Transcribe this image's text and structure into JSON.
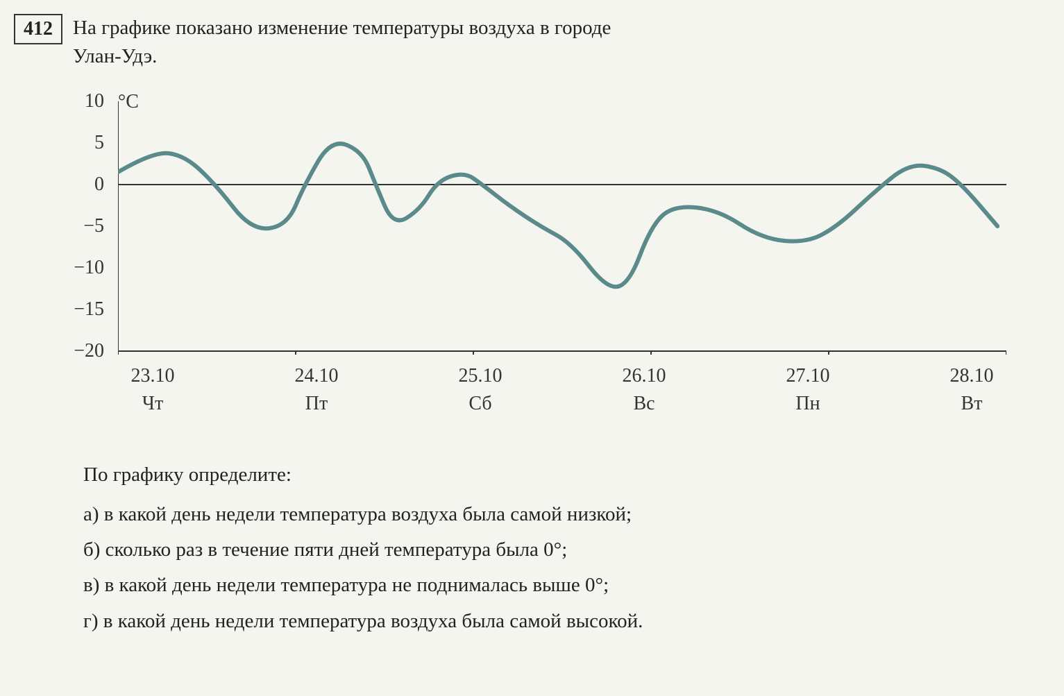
{
  "exercise": {
    "number": "412",
    "intro_line1": "На графике показано изменение температуры воздуха в городе",
    "intro_line2": "Улан-Удэ."
  },
  "chart": {
    "type": "line",
    "y_unit": "°C",
    "y_labels": [
      "10",
      "5",
      "0",
      "−5",
      "−10",
      "−15",
      "−20"
    ],
    "y_values": [
      10,
      5,
      0,
      -5,
      -10,
      -15,
      -20
    ],
    "ylim": [
      -20,
      10
    ],
    "x_dates": [
      "23.10",
      "24.10",
      "25.10",
      "26.10",
      "27.10",
      "28.10"
    ],
    "x_days": [
      "Чт",
      "Пт",
      "Сб",
      "Вс",
      "Пн",
      "Вт"
    ],
    "line_color": "#5a8a8a",
    "line_width": 6,
    "axis_color": "#333333",
    "axis_width": 2,
    "background_color": "#f5f5f0",
    "data_points": [
      {
        "x": 0.0,
        "y": 1.5
      },
      {
        "x": 0.08,
        "y": 4.0
      },
      {
        "x": 0.15,
        "y": 3.5
      },
      {
        "x": 0.22,
        "y": 0.0
      },
      {
        "x": 0.3,
        "y": -5.5
      },
      {
        "x": 0.38,
        "y": -5.0
      },
      {
        "x": 0.42,
        "y": 0.0
      },
      {
        "x": 0.48,
        "y": 5.5
      },
      {
        "x": 0.55,
        "y": 4.0
      },
      {
        "x": 0.58,
        "y": 0.0
      },
      {
        "x": 0.62,
        "y": -5.0
      },
      {
        "x": 0.68,
        "y": -3.0
      },
      {
        "x": 0.72,
        "y": 0.5
      },
      {
        "x": 0.78,
        "y": 1.5
      },
      {
        "x": 0.82,
        "y": 0.0
      },
      {
        "x": 0.88,
        "y": -2.5
      },
      {
        "x": 0.95,
        "y": -5.0
      },
      {
        "x": 1.02,
        "y": -7.0
      },
      {
        "x": 1.1,
        "y": -12.5
      },
      {
        "x": 1.15,
        "y": -12.0
      },
      {
        "x": 1.2,
        "y": -5.0
      },
      {
        "x": 1.25,
        "y": -2.5
      },
      {
        "x": 1.35,
        "y": -3.0
      },
      {
        "x": 1.45,
        "y": -6.5
      },
      {
        "x": 1.55,
        "y": -7.0
      },
      {
        "x": 1.62,
        "y": -5.0
      },
      {
        "x": 1.7,
        "y": -1.0
      },
      {
        "x": 1.78,
        "y": 2.5
      },
      {
        "x": 1.85,
        "y": 2.0
      },
      {
        "x": 1.9,
        "y": 0.0
      },
      {
        "x": 1.98,
        "y": -5.0
      }
    ]
  },
  "questions": {
    "intro": "По графику определите:",
    "items": [
      "а) в какой день недели температура воздуха была самой низкой;",
      "б) сколько раз в течение пяти дней температура была 0°;",
      "в) в какой день недели температура не поднималась выше 0°;",
      "г) в какой день недели температура воздуха была самой высокой."
    ]
  }
}
